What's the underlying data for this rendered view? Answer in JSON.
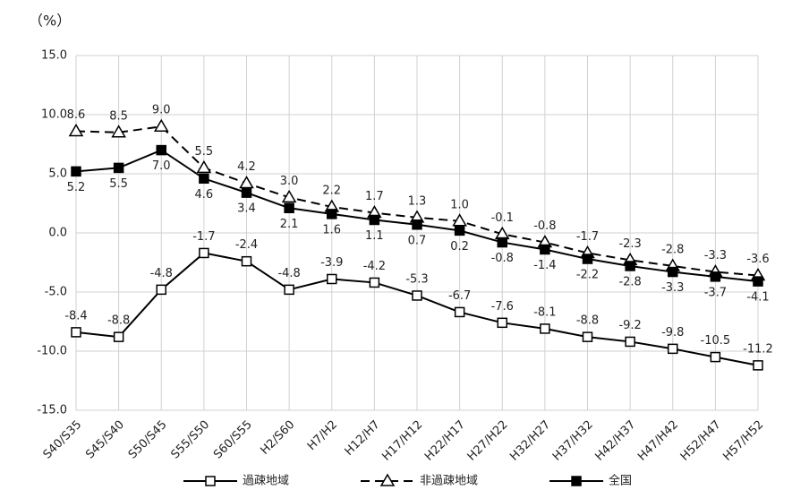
{
  "chart_data": {
    "type": "line",
    "y_label": "（%）",
    "categories": [
      "S40/S35",
      "S45/S40",
      "S50/S45",
      "S55/S50",
      "S60/S55",
      "H2/S60",
      "H7/H2",
      "H12/H7",
      "H17/H12",
      "H22/H17",
      "H27/H22",
      "H32/H27",
      "H37/H32",
      "H42/H37",
      "H47/H42",
      "H52/H47",
      "H57/H52"
    ],
    "series": [
      {
        "name": "過疎地域",
        "color": "#000000",
        "marker": "square-open",
        "dashed": false,
        "label_side": "above",
        "values": [
          -8.4,
          -8.8,
          -4.8,
          -1.7,
          -2.4,
          -4.8,
          -3.9,
          -4.2,
          -5.3,
          -6.7,
          -7.6,
          -8.1,
          -8.8,
          -9.2,
          -9.8,
          -10.5,
          -11.2
        ],
        "value_labels": [
          "-8.4",
          "-8.8",
          "-4.8",
          "-1.7",
          "-2.4",
          "-4.8",
          "-3.9",
          "-4.2",
          "-5.3",
          "-6.7",
          "-7.6",
          "-8.1",
          "-8.8",
          "-9.2",
          "-9.8",
          "-10.5",
          "-11.2"
        ]
      },
      {
        "name": "非過疎地域",
        "color": "#000000",
        "marker": "triangle-open",
        "dashed": true,
        "label_side": "above",
        "values": [
          8.6,
          8.5,
          9.0,
          5.5,
          4.2,
          3.0,
          2.2,
          1.7,
          1.3,
          1.0,
          -0.1,
          -0.8,
          -1.7,
          -2.3,
          -2.8,
          -3.3,
          -3.6
        ],
        "value_labels": [
          "8.6",
          "8.5",
          "9.0",
          "5.5",
          "4.2",
          "3.0",
          "2.2",
          "1.7",
          "1.3",
          "1.0",
          "-0.1",
          "-0.8",
          "-1.7",
          "-2.3",
          "-2.8",
          "-3.3",
          "-3.6"
        ]
      },
      {
        "name": "全国",
        "color": "#000000",
        "marker": "square-filled",
        "dashed": false,
        "label_side": "below",
        "values": [
          5.2,
          5.5,
          7.0,
          4.6,
          3.4,
          2.1,
          1.6,
          1.1,
          0.7,
          0.2,
          -0.8,
          -1.4,
          -2.2,
          -2.8,
          -3.3,
          -3.7,
          -4.1
        ],
        "value_labels": [
          "5.2",
          "5.5",
          "7.0",
          "4.6",
          "3.4",
          "2.1",
          "1.6",
          "1.1",
          "0.7",
          "0.2",
          "-0.8",
          "-1.4",
          "-2.2",
          "-2.8",
          "-3.3",
          "-3.7",
          "-4.1"
        ]
      }
    ],
    "ylim": [
      -15,
      15
    ],
    "yticks": [
      {
        "value": -15,
        "label": "-15.0"
      },
      {
        "value": -10,
        "label": "-10.0"
      },
      {
        "value": -5,
        "label": "-5.0"
      },
      {
        "value": 0,
        "label": "0.0"
      },
      {
        "value": 5,
        "label": "5.0"
      },
      {
        "value": 10,
        "label": "10.0"
      },
      {
        "value": 15,
        "label": "15.0"
      }
    ],
    "grid": true,
    "legend": "bottom"
  }
}
